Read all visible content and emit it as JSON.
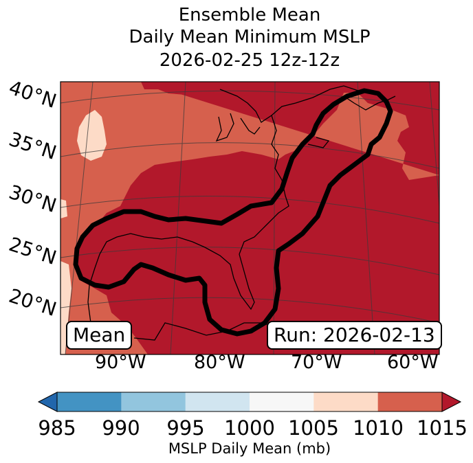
{
  "title": {
    "line1": "Ensemble Mean",
    "line2": "Daily Mean Minimum MSLP",
    "line3": "2026-02-25 12z-12z"
  },
  "map": {
    "region": "US East Coast and Gulf of Mexico",
    "lat_labels": [
      "40°N",
      "35°N",
      "30°N",
      "25°N",
      "20°N"
    ],
    "lon_labels": [
      "90°W",
      "80°W",
      "70°W",
      "60°W"
    ],
    "mean_label": "Mean",
    "run_label": "Run: 2026-02-13",
    "contour_color": "#000000"
  },
  "colorbar": {
    "ticks": [
      "985",
      "990",
      "995",
      "1000",
      "1005",
      "1010",
      "1015"
    ],
    "colors": [
      "#2166ac",
      "#4393c3",
      "#92c5de",
      "#d1e5f0",
      "#f7f7f7",
      "#fddbc7",
      "#d6604d",
      "#b2182b"
    ],
    "label": "MSLP Daily Mean (mb)",
    "units": "mb"
  }
}
